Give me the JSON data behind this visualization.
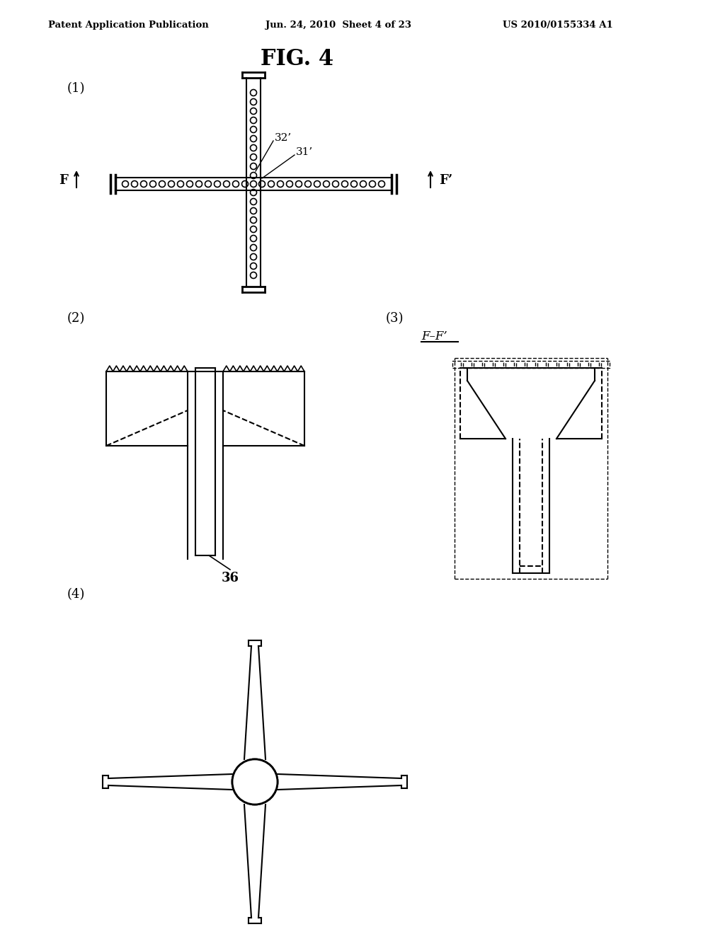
{
  "header_left": "Patent Application Publication",
  "header_center": "Jun. 24, 2010  Sheet 4 of 23",
  "header_right": "US 2010/0155334 A1",
  "fig_title": "FIG. 4",
  "background_color": "#ffffff",
  "line_color": "#000000",
  "panel1_label": "(1)",
  "panel2_label": "(2)",
  "panel3_label": "(3)",
  "panel4_label": "(4)",
  "label_32": "32’",
  "label_31": "31’",
  "label_F": "F",
  "label_Fp": "F’",
  "label_FF": "F–F’",
  "label_36": "36"
}
